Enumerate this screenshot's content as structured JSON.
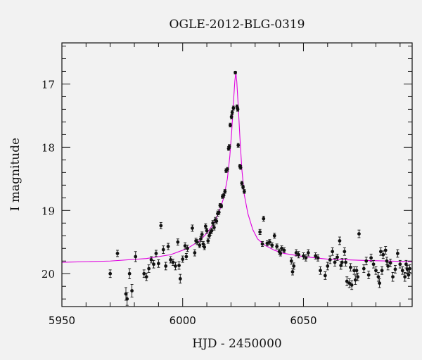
{
  "chart_data": {
    "type": "scatter",
    "title": "OGLE-2012-BLG-0319",
    "xlabel": "HJD - 2450000",
    "ylabel": "I magnitude",
    "xlim": [
      5950,
      6095
    ],
    "ylim": [
      20.52,
      16.35
    ],
    "y_inverted": true,
    "grid": false,
    "xticks": {
      "major": [
        5950,
        6000,
        6050
      ],
      "labels": [
        "5950",
        "6000",
        "6050"
      ],
      "minor_step": 10
    },
    "yticks": {
      "major": [
        17,
        18,
        19,
        20
      ],
      "labels": [
        "17",
        "18",
        "19",
        "20"
      ],
      "minor_step": 0.2
    },
    "colors": {
      "points": "#111111",
      "model": "#e000e0",
      "axes": "#111111",
      "background": "#f2f2f2"
    },
    "model": {
      "name": "",
      "color": "#e000e0",
      "x": [
        5950,
        5970,
        5985,
        5995,
        6002,
        6007,
        6010,
        6013,
        6015,
        6017,
        6018.5,
        6019.5,
        6020.3,
        6021,
        6021.6,
        6022,
        6022.4,
        6023,
        6023.7,
        6024.5,
        6025.5,
        6027,
        6029,
        6031,
        6034,
        6038,
        6042,
        6050,
        6060,
        6075,
        6095
      ],
      "y": [
        19.82,
        19.8,
        19.76,
        19.7,
        19.6,
        19.48,
        19.36,
        19.2,
        19.03,
        18.8,
        18.5,
        18.15,
        17.75,
        17.3,
        16.95,
        16.82,
        16.96,
        17.35,
        17.85,
        18.35,
        18.75,
        19.05,
        19.3,
        19.45,
        19.55,
        19.63,
        19.68,
        19.73,
        19.77,
        19.79,
        19.81
      ]
    },
    "points": [
      [
        5970,
        20.0,
        0.06
      ],
      [
        5973,
        19.68,
        0.05
      ],
      [
        5976.5,
        20.32,
        0.1
      ],
      [
        5977,
        20.4,
        0.1
      ],
      [
        5978,
        20.0,
        0.08
      ],
      [
        5979,
        20.27,
        0.1
      ],
      [
        5980.5,
        19.73,
        0.08
      ],
      [
        5984,
        20.0,
        0.06
      ],
      [
        5985,
        20.05,
        0.06
      ],
      [
        5986,
        19.92,
        0.06
      ],
      [
        5987,
        19.78,
        0.05
      ],
      [
        5988,
        19.85,
        0.06
      ],
      [
        5989,
        19.68,
        0.05
      ],
      [
        5990,
        19.84,
        0.06
      ],
      [
        5991,
        19.24,
        0.05
      ],
      [
        5992,
        19.62,
        0.06
      ],
      [
        5993,
        19.88,
        0.06
      ],
      [
        5994,
        19.57,
        0.05
      ],
      [
        5995,
        19.78,
        0.05
      ],
      [
        5996,
        19.82,
        0.05
      ],
      [
        5997,
        19.88,
        0.06
      ],
      [
        5998,
        19.5,
        0.05
      ],
      [
        5998.5,
        19.87,
        0.06
      ],
      [
        5999,
        20.08,
        0.07
      ],
      [
        6000,
        19.77,
        0.05
      ],
      [
        6001,
        19.56,
        0.05
      ],
      [
        6001.5,
        19.73,
        0.05
      ],
      [
        6002,
        19.6,
        0.05
      ],
      [
        6004,
        19.28,
        0.05
      ],
      [
        6005,
        19.67,
        0.05
      ],
      [
        6005.5,
        19.48,
        0.04
      ],
      [
        6006,
        19.5,
        0.04
      ],
      [
        6007,
        19.55,
        0.04
      ],
      [
        6007.5,
        19.45,
        0.04
      ],
      [
        6008,
        19.38,
        0.04
      ],
      [
        6008.5,
        19.53,
        0.04
      ],
      [
        6009,
        19.58,
        0.04
      ],
      [
        6009.5,
        19.25,
        0.04
      ],
      [
        6010,
        19.32,
        0.04
      ],
      [
        6010.5,
        19.48,
        0.04
      ],
      [
        6011,
        19.4,
        0.04
      ],
      [
        6011.5,
        19.35,
        0.04
      ],
      [
        6012,
        19.32,
        0.04
      ],
      [
        6012.5,
        19.2,
        0.04
      ],
      [
        6013,
        19.27,
        0.04
      ],
      [
        6013.5,
        19.15,
        0.04
      ],
      [
        6014,
        19.17,
        0.04
      ],
      [
        6014.5,
        19.05,
        0.04
      ],
      [
        6015,
        19.03,
        0.04
      ],
      [
        6015.5,
        18.92,
        0.03
      ],
      [
        6016,
        18.93,
        0.03
      ],
      [
        6016.5,
        18.78,
        0.03
      ],
      [
        6017,
        18.76,
        0.03
      ],
      [
        6017.5,
        18.7,
        0.03
      ],
      [
        6018,
        18.37,
        0.03
      ],
      [
        6018.5,
        18.35,
        0.03
      ],
      [
        6019,
        18.02,
        0.03
      ],
      [
        6019.3,
        17.99,
        0.03
      ],
      [
        6019.7,
        17.65,
        0.03
      ],
      [
        6020.2,
        17.52,
        0.03
      ],
      [
        6020.5,
        17.45,
        0.03
      ],
      [
        6021,
        17.38,
        0.03
      ],
      [
        6021.8,
        16.82,
        0.02
      ],
      [
        6022.5,
        17.36,
        0.03
      ],
      [
        6022.8,
        17.4,
        0.03
      ],
      [
        6023,
        17.97,
        0.03
      ],
      [
        6023.7,
        18.3,
        0.03
      ],
      [
        6024,
        18.32,
        0.03
      ],
      [
        6024.5,
        18.57,
        0.03
      ],
      [
        6025,
        18.63,
        0.03
      ],
      [
        6025.5,
        18.7,
        0.03
      ],
      [
        6032,
        19.34,
        0.04
      ],
      [
        6033,
        19.53,
        0.04
      ],
      [
        6033.5,
        19.13,
        0.04
      ],
      [
        6035,
        19.52,
        0.04
      ],
      [
        6036,
        19.5,
        0.04
      ],
      [
        6037,
        19.55,
        0.04
      ],
      [
        6038,
        19.4,
        0.04
      ],
      [
        6039,
        19.57,
        0.04
      ],
      [
        6040,
        19.65,
        0.04
      ],
      [
        6040.5,
        19.68,
        0.04
      ],
      [
        6041,
        19.6,
        0.04
      ],
      [
        6042,
        19.63,
        0.04
      ],
      [
        6045,
        19.8,
        0.05
      ],
      [
        6045.5,
        19.97,
        0.05
      ],
      [
        6046,
        19.88,
        0.05
      ],
      [
        6047,
        19.67,
        0.05
      ],
      [
        6048,
        19.7,
        0.05
      ],
      [
        6050,
        19.72,
        0.05
      ],
      [
        6051,
        19.75,
        0.05
      ],
      [
        6052,
        19.67,
        0.05
      ],
      [
        6055,
        19.72,
        0.05
      ],
      [
        6056,
        19.75,
        0.05
      ],
      [
        6057,
        19.95,
        0.06
      ],
      [
        6059,
        20.03,
        0.06
      ],
      [
        6060,
        19.88,
        0.06
      ],
      [
        6061,
        19.78,
        0.06
      ],
      [
        6062,
        19.65,
        0.06
      ],
      [
        6063,
        19.82,
        0.06
      ],
      [
        6064,
        19.74,
        0.05
      ],
      [
        6065,
        19.48,
        0.06
      ],
      [
        6065.5,
        19.87,
        0.06
      ],
      [
        6066,
        19.82,
        0.06
      ],
      [
        6067,
        19.65,
        0.06
      ],
      [
        6067.5,
        19.82,
        0.06
      ],
      [
        6068,
        20.12,
        0.07
      ],
      [
        6069,
        20.15,
        0.07
      ],
      [
        6069.5,
        19.9,
        0.06
      ],
      [
        6070,
        20.18,
        0.07
      ],
      [
        6071,
        19.95,
        0.06
      ],
      [
        6071.5,
        20.1,
        0.07
      ],
      [
        6072,
        19.95,
        0.06
      ],
      [
        6072.5,
        20.05,
        0.06
      ],
      [
        6073,
        19.37,
        0.06
      ],
      [
        6075,
        19.92,
        0.06
      ],
      [
        6076,
        19.8,
        0.06
      ],
      [
        6077,
        20.02,
        0.06
      ],
      [
        6078,
        19.75,
        0.06
      ],
      [
        6079,
        19.85,
        0.06
      ],
      [
        6080,
        19.95,
        0.06
      ],
      [
        6081,
        20.05,
        0.07
      ],
      [
        6081.5,
        20.15,
        0.07
      ],
      [
        6082,
        19.65,
        0.06
      ],
      [
        6082.5,
        19.95,
        0.06
      ],
      [
        6083,
        19.7,
        0.06
      ],
      [
        6084,
        19.63,
        0.06
      ],
      [
        6084.5,
        19.8,
        0.06
      ],
      [
        6085,
        19.88,
        0.06
      ],
      [
        6086,
        19.83,
        0.06
      ],
      [
        6087,
        20.05,
        0.07
      ],
      [
        6088,
        19.93,
        0.06
      ],
      [
        6089,
        19.68,
        0.06
      ],
      [
        6090,
        19.85,
        0.06
      ],
      [
        6091,
        19.95,
        0.06
      ],
      [
        6092,
        20.05,
        0.07
      ],
      [
        6092.5,
        19.85,
        0.06
      ],
      [
        6093,
        19.93,
        0.06
      ],
      [
        6093.5,
        20.02,
        0.06
      ],
      [
        6094,
        19.92,
        0.06
      ]
    ]
  }
}
